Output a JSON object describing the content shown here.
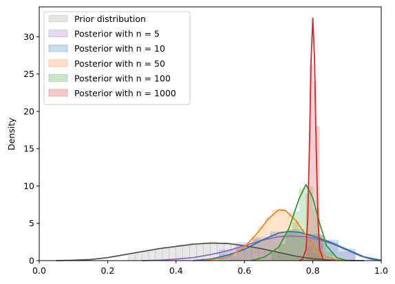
{
  "chart_data": {
    "type": "area",
    "title": "",
    "xlabel": "",
    "ylabel": "Density",
    "xlim": [
      0.0,
      1.0
    ],
    "ylim": [
      0,
      34
    ],
    "xticks": [
      "0.0",
      "0.2",
      "0.4",
      "0.6",
      "0.8",
      "1.0"
    ],
    "yticks": [
      "0",
      "5",
      "10",
      "15",
      "20",
      "25",
      "30"
    ],
    "grid": false,
    "legend_position": "top-left",
    "legend_entries": [
      "Prior distribution",
      "Posterior with n = 5",
      "Posterior with n = 10",
      "Posterior with n = 50",
      "Posterior with n = 100",
      "Posterior with n = 1000"
    ],
    "series": [
      {
        "name": "Prior distribution",
        "color": "#555555",
        "kde": [
          [
            0.05,
            0
          ],
          [
            0.1,
            0.05
          ],
          [
            0.15,
            0.15
          ],
          [
            0.2,
            0.4
          ],
          [
            0.25,
            0.8
          ],
          [
            0.3,
            1.2
          ],
          [
            0.35,
            1.6
          ],
          [
            0.4,
            1.9
          ],
          [
            0.45,
            2.2
          ],
          [
            0.5,
            2.35
          ],
          [
            0.55,
            2.3
          ],
          [
            0.6,
            2.0
          ],
          [
            0.65,
            1.6
          ],
          [
            0.7,
            1.1
          ],
          [
            0.75,
            0.6
          ],
          [
            0.8,
            0.25
          ],
          [
            0.85,
            0.08
          ],
          [
            0.9,
            0.02
          ],
          [
            0.95,
            0
          ]
        ],
        "hist": [
          [
            0.27,
            0.7
          ],
          [
            0.29,
            0.9
          ],
          [
            0.31,
            1.3
          ],
          [
            0.33,
            1.4
          ],
          [
            0.35,
            1.5
          ],
          [
            0.37,
            1.8
          ],
          [
            0.39,
            1.8
          ],
          [
            0.41,
            2.1
          ],
          [
            0.43,
            2.0
          ],
          [
            0.45,
            2.3
          ],
          [
            0.47,
            2.3
          ],
          [
            0.49,
            2.4
          ],
          [
            0.51,
            2.5
          ],
          [
            0.53,
            2.3
          ],
          [
            0.55,
            2.4
          ],
          [
            0.57,
            2.2
          ],
          [
            0.59,
            2.0
          ],
          [
            0.61,
            1.9
          ],
          [
            0.63,
            1.7
          ],
          [
            0.65,
            1.5
          ],
          [
            0.67,
            1.3
          ],
          [
            0.69,
            1.1
          ],
          [
            0.71,
            0.9
          ],
          [
            0.73,
            0.8
          ],
          [
            0.75,
            0.5
          ],
          [
            0.77,
            0.3
          ]
        ]
      },
      {
        "name": "Posterior with n = 5",
        "color": "#9467bd",
        "kde": [
          [
            0.3,
            0
          ],
          [
            0.35,
            0.05
          ],
          [
            0.4,
            0.2
          ],
          [
            0.45,
            0.4
          ],
          [
            0.5,
            0.8
          ],
          [
            0.55,
            1.3
          ],
          [
            0.6,
            2.0
          ],
          [
            0.65,
            2.7
          ],
          [
            0.7,
            3.2
          ],
          [
            0.74,
            3.3
          ],
          [
            0.78,
            3.2
          ],
          [
            0.82,
            2.8
          ],
          [
            0.86,
            2.2
          ],
          [
            0.9,
            1.4
          ],
          [
            0.94,
            0.6
          ],
          [
            0.97,
            0.2
          ],
          [
            1.0,
            0
          ]
        ],
        "hist": [
          [
            0.55,
            1.5
          ],
          [
            0.6,
            2.5
          ],
          [
            0.65,
            3.2
          ],
          [
            0.7,
            3.5
          ],
          [
            0.75,
            3.8
          ],
          [
            0.8,
            3.0
          ],
          [
            0.85,
            2.4
          ],
          [
            0.9,
            1.2
          ]
        ]
      },
      {
        "name": "Posterior with n = 10",
        "color": "#1f77b4",
        "kde": [
          [
            0.45,
            0
          ],
          [
            0.5,
            0.2
          ],
          [
            0.55,
            0.7
          ],
          [
            0.6,
            1.5
          ],
          [
            0.65,
            2.7
          ],
          [
            0.7,
            3.7
          ],
          [
            0.73,
            3.9
          ],
          [
            0.76,
            3.8
          ],
          [
            0.8,
            3.3
          ],
          [
            0.85,
            2.5
          ],
          [
            0.9,
            1.5
          ],
          [
            0.95,
            0.5
          ],
          [
            1.0,
            0.05
          ]
        ],
        "hist": [
          [
            0.55,
            0.9
          ],
          [
            0.6,
            1.8
          ],
          [
            0.65,
            2.9
          ],
          [
            0.7,
            3.9
          ],
          [
            0.75,
            4.2
          ],
          [
            0.8,
            3.6
          ],
          [
            0.85,
            2.8
          ],
          [
            0.9,
            1.6
          ]
        ]
      },
      {
        "name": "Posterior with n = 50",
        "color": "#ff7f0e",
        "kde": [
          [
            0.48,
            0
          ],
          [
            0.55,
            0.4
          ],
          [
            0.6,
            1.8
          ],
          [
            0.64,
            3.8
          ],
          [
            0.67,
            5.6
          ],
          [
            0.7,
            6.8
          ],
          [
            0.72,
            6.7
          ],
          [
            0.75,
            5.4
          ],
          [
            0.78,
            3.4
          ],
          [
            0.81,
            1.5
          ],
          [
            0.84,
            0.5
          ],
          [
            0.87,
            0.1
          ],
          [
            0.9,
            0
          ]
        ],
        "hist": [
          [
            0.57,
            0.6
          ],
          [
            0.59,
            1.2
          ],
          [
            0.61,
            2.2
          ],
          [
            0.63,
            3.3
          ],
          [
            0.65,
            4.6
          ],
          [
            0.67,
            5.8
          ],
          [
            0.69,
            6.8
          ],
          [
            0.71,
            7.0
          ],
          [
            0.73,
            6.4
          ],
          [
            0.75,
            5.2
          ],
          [
            0.77,
            3.5
          ],
          [
            0.79,
            2.0
          ],
          [
            0.81,
            1.0
          ],
          [
            0.83,
            0.4
          ]
        ]
      },
      {
        "name": "Posterior with n = 100",
        "color": "#2ca02c",
        "kde": [
          [
            0.62,
            0
          ],
          [
            0.66,
            0.5
          ],
          [
            0.7,
            1.8
          ],
          [
            0.73,
            4.3
          ],
          [
            0.76,
            8.3
          ],
          [
            0.78,
            10.2
          ],
          [
            0.8,
            8.4
          ],
          [
            0.82,
            5.0
          ],
          [
            0.84,
            2.0
          ],
          [
            0.87,
            0.4
          ],
          [
            0.9,
            0
          ]
        ],
        "hist": [
          [
            0.69,
            1.0
          ],
          [
            0.71,
            2.2
          ],
          [
            0.73,
            4.0
          ],
          [
            0.75,
            6.6
          ],
          [
            0.77,
            9.7
          ],
          [
            0.79,
            9.9
          ],
          [
            0.81,
            7.0
          ],
          [
            0.83,
            3.3
          ],
          [
            0.85,
            1.2
          ]
        ]
      },
      {
        "name": "Posterior with n = 1000",
        "color": "#d62728",
        "kde": [
          [
            0.76,
            0
          ],
          [
            0.77,
            0.2
          ],
          [
            0.78,
            1.5
          ],
          [
            0.785,
            5.5
          ],
          [
            0.79,
            15.0
          ],
          [
            0.795,
            27.0
          ],
          [
            0.8,
            32.5
          ],
          [
            0.805,
            27.0
          ],
          [
            0.81,
            15.0
          ],
          [
            0.815,
            5.5
          ],
          [
            0.82,
            1.5
          ],
          [
            0.83,
            0.2
          ],
          [
            0.84,
            0
          ]
        ],
        "hist": [
          [
            0.785,
            9.0
          ],
          [
            0.795,
            26.2
          ],
          [
            0.805,
            24.0
          ],
          [
            0.815,
            18.0
          ],
          [
            0.825,
            3.5
          ]
        ]
      }
    ]
  }
}
